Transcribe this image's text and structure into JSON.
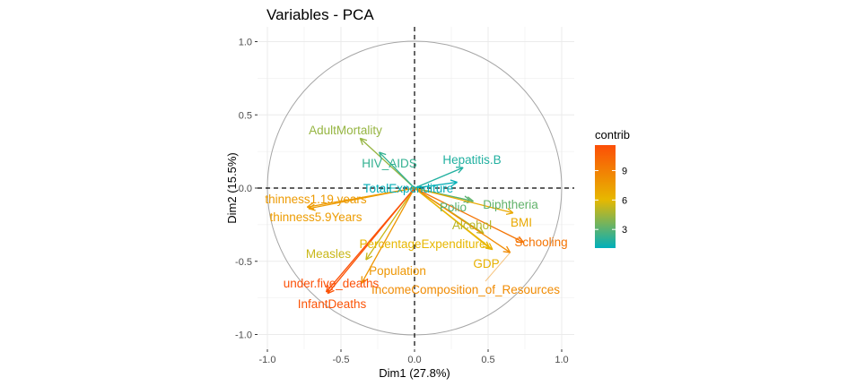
{
  "chart_data": {
    "type": "scatter",
    "subtype": "pca-variable-arrows",
    "title": "Variables - PCA",
    "xlabel": "Dim1 (27.8%)",
    "ylabel": "Dim2 (15.5%)",
    "xlim": [
      -1.1,
      1.1
    ],
    "ylim": [
      -1.1,
      1.1
    ],
    "xticks": [
      "-1.0",
      "-0.5",
      "0.0",
      "0.5",
      "1.0"
    ],
    "yticks": [
      "-1.0",
      "-0.5",
      "0.0",
      "0.5",
      "1.0"
    ],
    "grid": true,
    "correlation_circle": true,
    "legend": {
      "title": "contrib",
      "position": "right",
      "ticks": [
        "3",
        "6",
        "9"
      ],
      "range": [
        1.1,
        11.6
      ],
      "colors": {
        "low": "#00AFBB",
        "mid": "#E7B800",
        "high": "#FC4E07"
      }
    },
    "variables": [
      {
        "name": "AdultMortality",
        "x": -0.37,
        "y": 0.34,
        "contrib": 4.3
      },
      {
        "name": "HIV_AIDS",
        "x": -0.24,
        "y": 0.245,
        "contrib": 2.2
      },
      {
        "name": "Hepatitis.B",
        "x": 0.33,
        "y": 0.14,
        "contrib": 1.8
      },
      {
        "name": "TotalExpenditure",
        "x": 0.29,
        "y": 0.04,
        "contrib": 1.2
      },
      {
        "name": "Diphtheria",
        "x": 0.4,
        "y": -0.09,
        "contrib": 3.2
      },
      {
        "name": "Polio",
        "x": 0.38,
        "y": -0.085,
        "contrib": 3.0
      },
      {
        "name": "BMI",
        "x": 0.67,
        "y": -0.17,
        "contrib": 6.8
      },
      {
        "name": "Schooling",
        "x": 0.74,
        "y": -0.37,
        "contrib": 9.6
      },
      {
        "name": "Alcohol",
        "x": 0.47,
        "y": -0.31,
        "contrib": 5.0
      },
      {
        "name": "GDP",
        "x": 0.53,
        "y": -0.42,
        "contrib": 6.4
      },
      {
        "name": "PercentageExpenditure",
        "x": 0.51,
        "y": -0.41,
        "contrib": 6.1
      },
      {
        "name": "IncomeComposition_of_Resources",
        "x": 0.65,
        "y": -0.44,
        "contrib": 8.4
      },
      {
        "name": "thinness1.19.years",
        "x": -0.73,
        "y": -0.13,
        "contrib": 7.6
      },
      {
        "name": "thinness5.9Years",
        "x": -0.72,
        "y": -0.14,
        "contrib": 7.5
      },
      {
        "name": "Measles",
        "x": -0.33,
        "y": -0.49,
        "contrib": 5.4
      },
      {
        "name": "Population",
        "x": -0.36,
        "y": -0.65,
        "contrib": 7.8
      },
      {
        "name": "under.five_deaths",
        "x": -0.6,
        "y": -0.71,
        "contrib": 11.5
      },
      {
        "name": "InfantDeaths",
        "x": -0.59,
        "y": -0.72,
        "contrib": 11.3
      }
    ]
  }
}
